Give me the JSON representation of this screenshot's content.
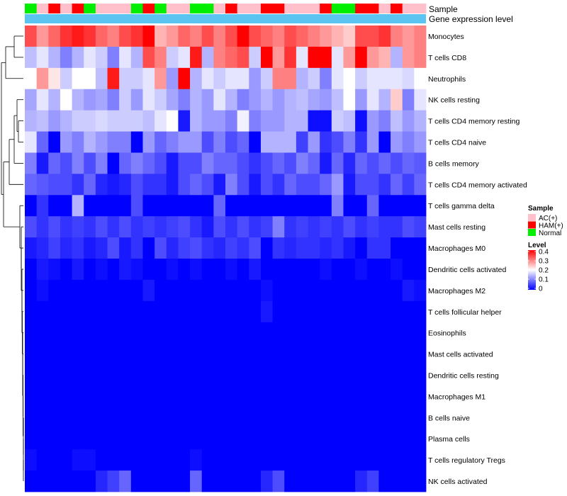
{
  "chart_data": {
    "type": "heatmap",
    "annotation_labels": [
      "Sample",
      "Gene expression level"
    ],
    "rows": [
      "Monocytes",
      "T cells CD8",
      "Neutrophils",
      "NK cells resting",
      "T cells CD4 memory resting",
      "T cells CD4 naive",
      "B cells memory",
      "T cells CD4 memory activated",
      "T cells gamma delta",
      "Mast cells resting",
      "Macrophages M0",
      "Dendritic cells activated",
      "Macrophages M2",
      "T cells follicular helper",
      "Eosinophils",
      "Mast cells activated",
      "Dendritic cells resting",
      "Macrophages M1",
      "B cells naive",
      "Plasma cells",
      "T cells regulatory  Tregs",
      "NK cells activated"
    ],
    "sample_groups": [
      "Normal",
      "AC(+)",
      "HAM(+)",
      "AC(+)",
      "HAM(+)",
      "Normal",
      "AC(+)",
      "AC(+)",
      "AC(+)",
      "Normal",
      "HAM(+)",
      "Normal",
      "AC(+)",
      "AC(+)",
      "Normal",
      "Normal",
      "AC(+)",
      "HAM(+)",
      "AC(+)",
      "AC(+)",
      "HAM(+)",
      "HAM(+)",
      "AC(+)",
      "AC(+)",
      "AC(+)",
      "HAM(+)",
      "Normal",
      "Normal",
      "HAM(+)",
      "HAM(+)",
      "AC(+)",
      "HAM(+)",
      "AC(+)",
      "AC(+)"
    ],
    "values": [
      [
        0.34,
        0.28,
        0.32,
        0.36,
        0.38,
        0.36,
        0.32,
        0.3,
        0.34,
        0.36,
        0.4,
        0.26,
        0.28,
        0.32,
        0.3,
        0.34,
        0.3,
        0.34,
        0.4,
        0.34,
        0.32,
        0.3,
        0.34,
        0.32,
        0.3,
        0.28,
        0.26,
        0.24,
        0.34,
        0.34,
        0.36,
        0.3,
        0.28,
        0.3
      ],
      [
        0.15,
        0.18,
        0.14,
        0.1,
        0.14,
        0.18,
        0.16,
        0.1,
        0.18,
        0.14,
        0.34,
        0.3,
        0.16,
        0.18,
        0.38,
        0.14,
        0.3,
        0.32,
        0.34,
        0.16,
        0.4,
        0.28,
        0.36,
        0.18,
        0.4,
        0.4,
        0.18,
        0.28,
        0.4,
        0.28,
        0.26,
        0.14,
        0.28,
        0.3
      ],
      [
        0.2,
        0.28,
        0.22,
        0.16,
        0.2,
        0.2,
        0.15,
        0.38,
        0.16,
        0.16,
        0.18,
        0.28,
        0.12,
        0.4,
        0.14,
        0.18,
        0.16,
        0.18,
        0.18,
        0.12,
        0.16,
        0.3,
        0.3,
        0.14,
        0.16,
        0.1,
        0.18,
        0.2,
        0.16,
        0.18,
        0.18,
        0.18,
        0.17,
        0.2
      ],
      [
        0.13,
        0.18,
        0.14,
        0.2,
        0.14,
        0.12,
        0.13,
        0.1,
        0.16,
        0.12,
        0.18,
        0.16,
        0.13,
        0.1,
        0.14,
        0.12,
        0.18,
        0.14,
        0.1,
        0.12,
        0.14,
        0.12,
        0.14,
        0.15,
        0.13,
        0.12,
        0.15,
        0.2,
        0.12,
        0.18,
        0.14,
        0.24,
        0.1,
        0.18
      ],
      [
        0.14,
        0.15,
        0.12,
        0.14,
        0.16,
        0.16,
        0.17,
        0.16,
        0.16,
        0.16,
        0.15,
        0.18,
        0.2,
        0.02,
        0.14,
        0.12,
        0.12,
        0.1,
        0.19,
        0.1,
        0.12,
        0.12,
        0.14,
        0.14,
        0.01,
        0.01,
        0.16,
        0.15,
        0.01,
        0.12,
        0.1,
        0.15,
        0.12,
        0.14
      ],
      [
        0.18,
        0.08,
        0.0,
        0.12,
        0.1,
        0.14,
        0.12,
        0.1,
        0.1,
        0.0,
        0.12,
        0.08,
        0.1,
        0.12,
        0.12,
        0.06,
        0.1,
        0.06,
        0.08,
        0.0,
        0.14,
        0.14,
        0.14,
        0.05,
        0.12,
        0.04,
        0.06,
        0.1,
        0.04,
        0.12,
        0.0,
        0.12,
        0.1,
        0.12
      ],
      [
        0.1,
        0.02,
        0.08,
        0.06,
        0.1,
        0.06,
        0.1,
        0.0,
        0.08,
        0.1,
        0.08,
        0.06,
        0.02,
        0.06,
        0.06,
        0.1,
        0.08,
        0.08,
        0.06,
        0.04,
        0.06,
        0.08,
        0.06,
        0.1,
        0.08,
        0.02,
        0.08,
        0.03,
        0.08,
        0.06,
        0.08,
        0.06,
        0.08,
        0.07
      ],
      [
        0.08,
        0.07,
        0.06,
        0.06,
        0.04,
        0.08,
        0.03,
        0.02,
        0.03,
        0.06,
        0.04,
        0.04,
        0.02,
        0.06,
        0.08,
        0.06,
        0.02,
        0.1,
        0.06,
        0.02,
        0.06,
        0.04,
        0.08,
        0.06,
        0.06,
        0.08,
        0.12,
        0.02,
        0.06,
        0.06,
        0.04,
        0.08,
        0.05,
        0.08
      ],
      [
        0.0,
        0.04,
        0.0,
        0.0,
        0.14,
        0.0,
        0.0,
        0.0,
        0.0,
        0.06,
        0.0,
        0.0,
        0.0,
        0.0,
        0.0,
        0.0,
        0.08,
        0.0,
        0.0,
        0.0,
        0.0,
        0.0,
        0.0,
        0.0,
        0.0,
        0.0,
        0.1,
        0.0,
        0.0,
        0.08,
        0.0,
        0.0,
        0.0,
        0.0
      ],
      [
        0.06,
        0.04,
        0.06,
        0.04,
        0.05,
        0.04,
        0.06,
        0.04,
        0.06,
        0.04,
        0.05,
        0.04,
        0.05,
        0.06,
        0.04,
        0.02,
        0.06,
        0.04,
        0.06,
        0.04,
        0.05,
        0.1,
        0.04,
        0.05,
        0.04,
        0.05,
        0.04,
        0.06,
        0.04,
        0.05,
        0.04,
        0.04,
        0.06,
        0.05
      ],
      [
        0.02,
        0.03,
        0.05,
        0.03,
        0.04,
        0.02,
        0.03,
        0.06,
        0.02,
        0.04,
        0.0,
        0.06,
        0.03,
        0.05,
        0.06,
        0.04,
        0.03,
        0.05,
        0.04,
        0.06,
        0.0,
        0.04,
        0.03,
        0.04,
        0.04,
        0.03,
        0.04,
        0.02,
        0.0,
        0.04,
        0.04,
        0.0,
        0.0,
        0.0
      ],
      [
        0.0,
        0.02,
        0.01,
        0.0,
        0.02,
        0.0,
        0.01,
        0.0,
        0.02,
        0.01,
        0.0,
        0.0,
        0.01,
        0.0,
        0.01,
        0.0,
        0.0,
        0.01,
        0.0,
        0.02,
        0.0,
        0.0,
        0.0,
        0.0,
        0.0,
        0.01,
        0.0,
        0.0,
        0.01,
        0.0,
        0.0,
        0.01,
        0.0,
        0.0
      ],
      [
        0.0,
        0.01,
        0.0,
        0.0,
        0.0,
        0.0,
        0.0,
        0.0,
        0.0,
        0.0,
        0.02,
        0.0,
        0.0,
        0.0,
        0.0,
        0.0,
        0.0,
        0.0,
        0.0,
        0.0,
        0.01,
        0.0,
        0.0,
        0.0,
        0.0,
        0.0,
        0.0,
        0.0,
        0.0,
        0.0,
        0.0,
        0.0,
        0.02,
        0.01
      ],
      [
        0.0,
        0.0,
        0.0,
        0.0,
        0.0,
        0.0,
        0.0,
        0.0,
        0.0,
        0.0,
        0.0,
        0.0,
        0.0,
        0.0,
        0.0,
        0.0,
        0.0,
        0.0,
        0.0,
        0.0,
        0.02,
        0.0,
        0.0,
        0.0,
        0.0,
        0.0,
        0.0,
        0.0,
        0.0,
        0.0,
        0.0,
        0.0,
        0.0,
        0.0
      ],
      [
        0.0,
        0.0,
        0.0,
        0.0,
        0.0,
        0.0,
        0.0,
        0.0,
        0.0,
        0.0,
        0.0,
        0.0,
        0.0,
        0.0,
        0.0,
        0.0,
        0.0,
        0.0,
        0.0,
        0.0,
        0.0,
        0.0,
        0.0,
        0.0,
        0.0,
        0.0,
        0.0,
        0.0,
        0.0,
        0.0,
        0.0,
        0.0,
        0.0,
        0.0
      ],
      [
        0.0,
        0.0,
        0.0,
        0.0,
        0.0,
        0.0,
        0.0,
        0.0,
        0.0,
        0.0,
        0.0,
        0.0,
        0.0,
        0.0,
        0.0,
        0.0,
        0.0,
        0.0,
        0.0,
        0.0,
        0.0,
        0.0,
        0.0,
        0.0,
        0.0,
        0.0,
        0.0,
        0.0,
        0.0,
        0.0,
        0.0,
        0.0,
        0.0,
        0.0
      ],
      [
        0.0,
        0.0,
        0.0,
        0.0,
        0.0,
        0.0,
        0.0,
        0.0,
        0.0,
        0.0,
        0.0,
        0.0,
        0.0,
        0.0,
        0.0,
        0.0,
        0.0,
        0.0,
        0.0,
        0.0,
        0.0,
        0.0,
        0.0,
        0.0,
        0.0,
        0.0,
        0.0,
        0.0,
        0.0,
        0.0,
        0.0,
        0.0,
        0.0,
        0.0
      ],
      [
        0.0,
        0.0,
        0.0,
        0.0,
        0.0,
        0.0,
        0.0,
        0.0,
        0.0,
        0.0,
        0.0,
        0.0,
        0.0,
        0.0,
        0.0,
        0.0,
        0.0,
        0.0,
        0.0,
        0.0,
        0.0,
        0.0,
        0.0,
        0.0,
        0.0,
        0.0,
        0.0,
        0.0,
        0.0,
        0.0,
        0.0,
        0.0,
        0.0,
        0.0
      ],
      [
        0.0,
        0.0,
        0.0,
        0.0,
        0.0,
        0.0,
        0.0,
        0.0,
        0.0,
        0.0,
        0.0,
        0.0,
        0.0,
        0.0,
        0.0,
        0.0,
        0.0,
        0.0,
        0.0,
        0.0,
        0.0,
        0.0,
        0.0,
        0.0,
        0.0,
        0.0,
        0.0,
        0.0,
        0.0,
        0.0,
        0.0,
        0.0,
        0.0,
        0.0
      ],
      [
        0.0,
        0.0,
        0.0,
        0.0,
        0.0,
        0.0,
        0.0,
        0.0,
        0.0,
        0.0,
        0.0,
        0.0,
        0.0,
        0.0,
        0.0,
        0.0,
        0.0,
        0.0,
        0.0,
        0.0,
        0.0,
        0.0,
        0.0,
        0.0,
        0.0,
        0.0,
        0.0,
        0.0,
        0.0,
        0.0,
        0.0,
        0.0,
        0.0,
        0.0
      ],
      [
        0.01,
        0.0,
        0.0,
        0.0,
        0.01,
        0.01,
        0.0,
        0.0,
        0.0,
        0.0,
        0.0,
        0.0,
        0.0,
        0.0,
        0.01,
        0.0,
        0.0,
        0.0,
        0.0,
        0.0,
        0.0,
        0.0,
        0.0,
        0.0,
        0.0,
        0.0,
        0.0,
        0.0,
        0.0,
        0.0,
        0.0,
        0.0,
        0.0,
        0.0
      ],
      [
        0.0,
        0.0,
        0.0,
        0.0,
        0.0,
        0.0,
        0.03,
        0.05,
        0.08,
        0.0,
        0.0,
        0.0,
        0.0,
        0.0,
        0.08,
        0.0,
        0.0,
        0.0,
        0.0,
        0.0,
        0.03,
        0.06,
        0.0,
        0.0,
        0.0,
        0.0,
        0.0,
        0.0,
        0.03,
        0.05,
        0.0,
        0.0,
        0.0,
        0.0
      ]
    ],
    "legend": {
      "sample_title": "Sample",
      "sample_entries": [
        {
          "label": "AC(+)",
          "color": "#ffc0cb"
        },
        {
          "label": "HAM(+)",
          "color": "#ff0000"
        },
        {
          "label": "Normal",
          "color": "#00ee00"
        }
      ],
      "level_title": "Level",
      "level_ticks": [
        "0.4",
        "0.3",
        "0.2",
        "0.1",
        "0"
      ],
      "level_range": [
        0,
        0.4
      ]
    },
    "colors": {
      "low": "#0000ff",
      "mid": "#ffffff",
      "high": "#ff0000",
      "expression_bar": "#5bc4f1"
    }
  }
}
